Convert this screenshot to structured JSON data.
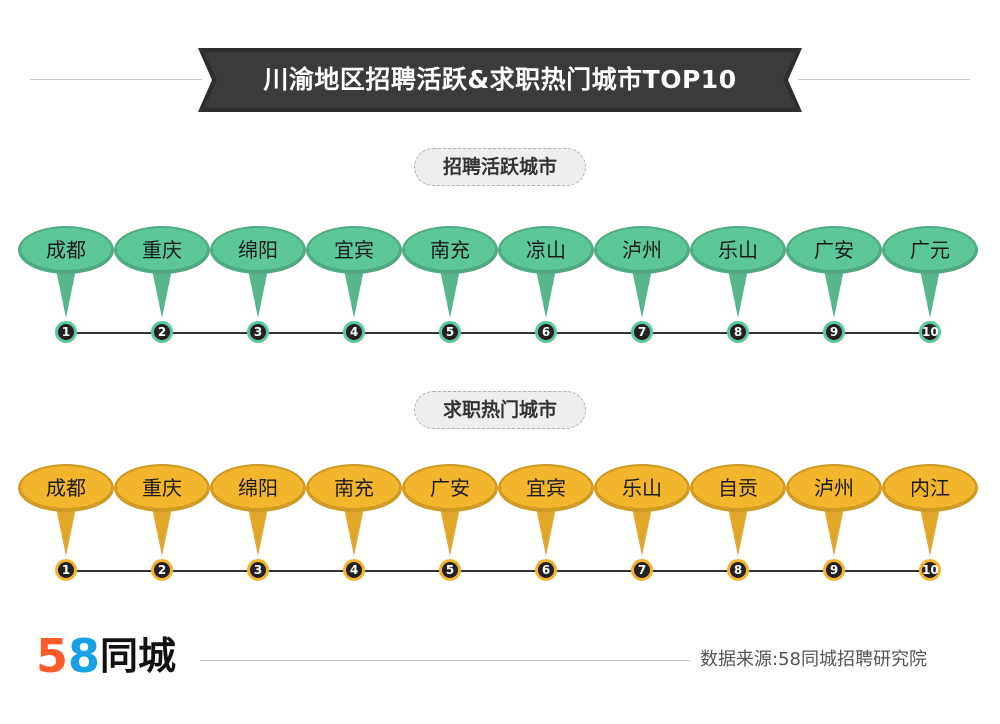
{
  "title": "川渝地区招聘活跃&求职热门城市TOP10",
  "recruiting": {
    "label": "招聘活跃城市",
    "color": "#5ec79a",
    "cities": [
      "成都",
      "重庆",
      "绵阳",
      "宜宾",
      "南充",
      "凉山",
      "泸州",
      "乐山",
      "广安",
      "广元"
    ]
  },
  "jobseeking": {
    "label": "求职热门城市",
    "color": "#f3b52c",
    "cities": [
      "成都",
      "重庆",
      "绵阳",
      "南充",
      "广安",
      "宜宾",
      "乐山",
      "自贡",
      "泸州",
      "内江"
    ]
  },
  "ranks": [
    "1",
    "2",
    "3",
    "4",
    "5",
    "6",
    "7",
    "8",
    "9",
    "10"
  ],
  "footer": {
    "logo_digits": [
      "5",
      "8"
    ],
    "logo_text": "同城",
    "source": "数据来源:58同城招聘研究院"
  }
}
